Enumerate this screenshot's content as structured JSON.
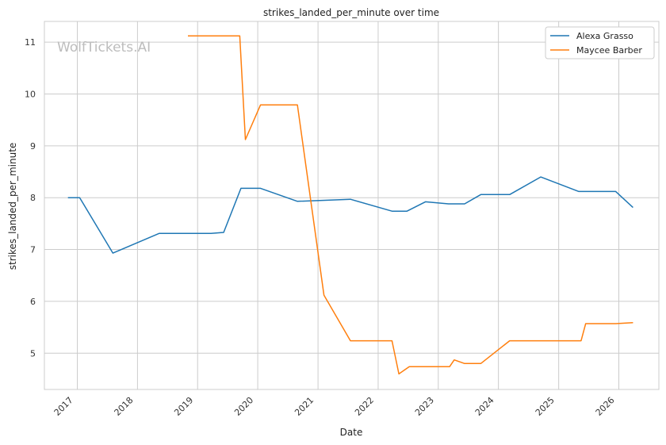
{
  "chart_data": {
    "type": "line",
    "title": "strikes_landed_per_minute over time",
    "xlabel": "Date",
    "ylabel": "strikes_landed_per_minute",
    "watermark": "WolfTickets.AI",
    "x_ticks": [
      "2017",
      "2018",
      "2019",
      "2020",
      "2021",
      "2022",
      "2023",
      "2024",
      "2025",
      "2026"
    ],
    "y_ticks": [
      5,
      6,
      7,
      8,
      9,
      10,
      11
    ],
    "xlim": [
      "2016-06-15",
      "2026-09-01"
    ],
    "ylim": [
      4.3,
      11.4
    ],
    "grid": true,
    "legend_position": "top-right",
    "series": [
      {
        "name": "Alexa Grasso",
        "color": "#1f77b4",
        "points": [
          [
            "2016-11-05",
            8.0
          ],
          [
            "2017-01-15",
            8.0
          ],
          [
            "2017-08-05",
            6.93
          ],
          [
            "2018-05-12",
            7.31
          ],
          [
            "2019-03-23",
            7.31
          ],
          [
            "2019-06-08",
            7.33
          ],
          [
            "2019-09-21",
            8.18
          ],
          [
            "2020-01-18",
            8.18
          ],
          [
            "2020-08-29",
            7.93
          ],
          [
            "2021-07-17",
            7.97
          ],
          [
            "2022-03-26",
            7.74
          ],
          [
            "2022-06-25",
            7.74
          ],
          [
            "2022-10-15",
            7.92
          ],
          [
            "2023-03-04",
            7.88
          ],
          [
            "2023-06-10",
            7.88
          ],
          [
            "2023-09-16",
            8.06
          ],
          [
            "2024-03-09",
            8.06
          ],
          [
            "2024-09-14",
            8.4
          ],
          [
            "2025-05-03",
            8.12
          ],
          [
            "2025-12-13",
            8.12
          ],
          [
            "2026-03-28",
            7.81
          ]
        ]
      },
      {
        "name": "Maycee Barber",
        "color": "#ff7f0e",
        "points": [
          [
            "2018-11-03",
            11.12
          ],
          [
            "2019-09-14",
            11.12
          ],
          [
            "2019-10-18",
            9.12
          ],
          [
            "2020-01-18",
            9.79
          ],
          [
            "2020-08-29",
            9.79
          ],
          [
            "2021-02-06",
            6.12
          ],
          [
            "2021-07-17",
            5.24
          ],
          [
            "2022-03-26",
            5.24
          ],
          [
            "2022-05-07",
            4.6
          ],
          [
            "2022-07-09",
            4.74
          ],
          [
            "2023-03-11",
            4.74
          ],
          [
            "2023-04-08",
            4.87
          ],
          [
            "2023-06-10",
            4.8
          ],
          [
            "2023-09-16",
            4.8
          ],
          [
            "2024-03-09",
            5.24
          ],
          [
            "2025-05-17",
            5.24
          ],
          [
            "2025-06-14",
            5.57
          ],
          [
            "2025-12-13",
            5.57
          ],
          [
            "2026-03-28",
            5.59
          ]
        ]
      }
    ]
  }
}
